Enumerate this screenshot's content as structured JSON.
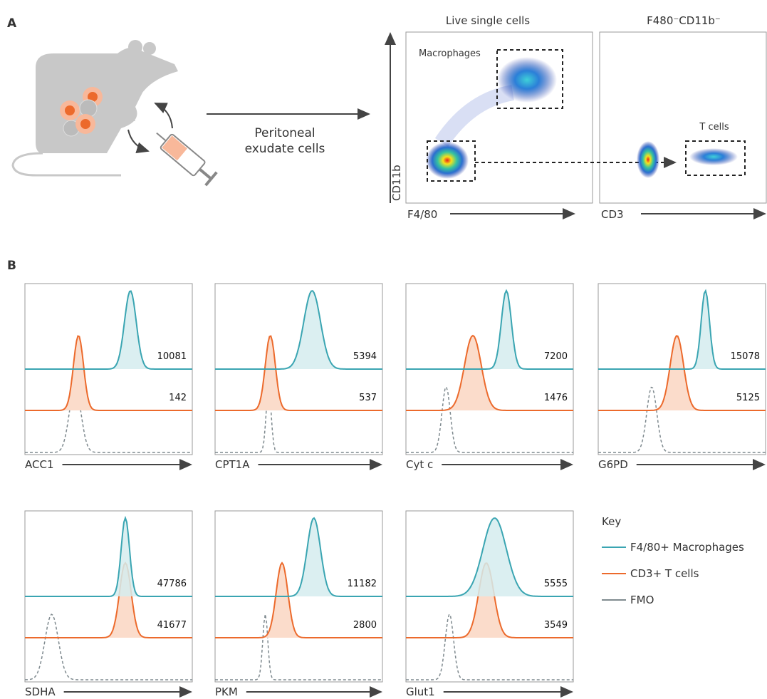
{
  "panel_a": {
    "label": "A",
    "transfer_label": [
      "Peritoneal",
      "exudate cells"
    ],
    "plot_1": {
      "title": "Live single cells",
      "x_axis": "F4/80",
      "y_axis": "CD11b",
      "gate": "Macrophages"
    },
    "plot_2": {
      "title": "F480⁻CD11b⁻",
      "x_axis": "CD3",
      "gate": "T cells"
    }
  },
  "panel_b": {
    "label": "B",
    "histograms": [
      {
        "marker": "ACC1",
        "macrophages": 10081,
        "t_cells": 142
      },
      {
        "marker": "CPT1A",
        "macrophages": 5394,
        "t_cells": 537
      },
      {
        "marker": "Cyt c",
        "macrophages": 7200,
        "t_cells": 1476
      },
      {
        "marker": "G6PD",
        "macrophages": 15078,
        "t_cells": 5125
      },
      {
        "marker": "SDHA",
        "macrophages": 47786,
        "t_cells": 41677
      },
      {
        "marker": "PKM",
        "macrophages": 11182,
        "t_cells": 2800
      },
      {
        "marker": "Glut1",
        "macrophages": 5555,
        "t_cells": 3549
      }
    ],
    "key": {
      "title": "Key",
      "entries": [
        {
          "label": "F4/80+ Macrophages",
          "color": "#3aa5b2"
        },
        {
          "label": "CD3+ T cells",
          "color": "#ec6a2c"
        },
        {
          "label": "FMO",
          "color": "#7f8a8f"
        }
      ]
    }
  }
}
